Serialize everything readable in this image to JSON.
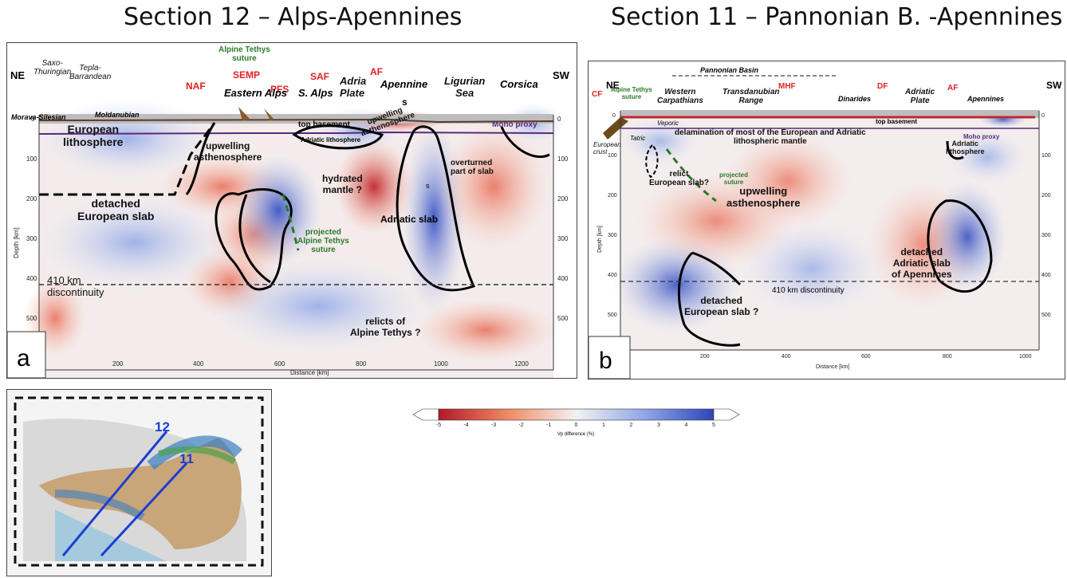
{
  "titles": {
    "left": "Section 12 – Alps-Apennines",
    "right": "Section 11 – Pannonian B. -Apennines"
  },
  "panel_a": {
    "letter": "a",
    "ne": "NE",
    "sw": "SW",
    "faults": [
      "NAF",
      "SEMP",
      "PFS",
      "SAF",
      "AF"
    ],
    "regions": {
      "saxo": "Saxo-\nThuringian",
      "tepla": "Tepla-\nBarrandean",
      "morava": "Morava-Silesian",
      "moldanubian": "Moldanubian",
      "suture": "Alpine Tethys\nsuture",
      "eastern_alps": "Eastern Alps",
      "s_alps": "S. Alps",
      "adria": "Adria\nPlate",
      "apennine": "Apennine",
      "ligurian": "Ligurian\nSea",
      "corsica": "Corsica"
    },
    "features": {
      "top_basement": "top basement",
      "adriatic_litho": "Adriatic lithosphere",
      "moho": "Moho proxy",
      "euro_litho": "European\nlithosphere",
      "upwelling": "upwelling\nasthenosphere",
      "upwelling2": "upwelling\nasthenosphere",
      "hydrated": "hydrated\nmantle ?",
      "overturned": "overturned\npart of slab",
      "adriatic_slab": "Adriatic slab",
      "detached": "detached\nEuropean slab",
      "projected": "projected\nAlpine Tethys\nsuture",
      "disc": "410 km\ndiscontinuity",
      "relicts": "relicts of\nAlpine Tethys ?",
      "s": "s"
    },
    "ylabel": "Depth [km]",
    "xlabel": "Distance [km]",
    "yticks": [
      "0",
      "100",
      "200",
      "300",
      "400",
      "500"
    ],
    "xticks": [
      "200",
      "400",
      "600",
      "800",
      "1000",
      "1200"
    ]
  },
  "panel_b": {
    "letter": "b",
    "ne": "NE",
    "sw": "SW",
    "faults": [
      "CF",
      "MHF",
      "DF",
      "AF"
    ],
    "regions": {
      "pannonian": "Pannonian Basin",
      "suture": "Alpine Tethys\nsuture",
      "western": "Western\nCarpathians",
      "transdanubian": "Transdanubian\nRange",
      "dinarides": "Dinarides",
      "adriatic_plate": "Adriatic\nPlate",
      "apennines": "Apennines"
    },
    "features": {
      "veporic": "Veporic",
      "tatric": "Tatric",
      "european_crust": "European\ncrust",
      "top_basement": "top basement",
      "moho": "Moho proxy",
      "delamination": "delamination of most of the European and Adriatic\nlithospheric mantle",
      "relict": "relict\nEuropean slab?",
      "projected": "projected\nsuture",
      "upwelling": "upwelling\nasthenosphere",
      "adriatic_litho": "Adriatic\nlithosphere",
      "detached_adriatic": "detached\nAdriatic slab\nof Apennines",
      "disc": "410 km discontinuity",
      "detached_euro": "detached\nEuropean slab ?"
    },
    "ylabel": "Depth [km]",
    "xlabel": "Distance [km]",
    "yticks": [
      "0",
      "100",
      "200",
      "300",
      "400",
      "500"
    ],
    "xticks": [
      "200",
      "400",
      "600",
      "800",
      "1000"
    ]
  },
  "colorbar": {
    "label": "Vp difference (%)",
    "ticks": [
      "-5",
      "-4",
      "-3",
      "-2",
      "-1",
      "0",
      "1",
      "2",
      "3",
      "4",
      "5"
    ],
    "min": -5,
    "max": 5
  },
  "map": {
    "sections": [
      "12",
      "11"
    ]
  }
}
